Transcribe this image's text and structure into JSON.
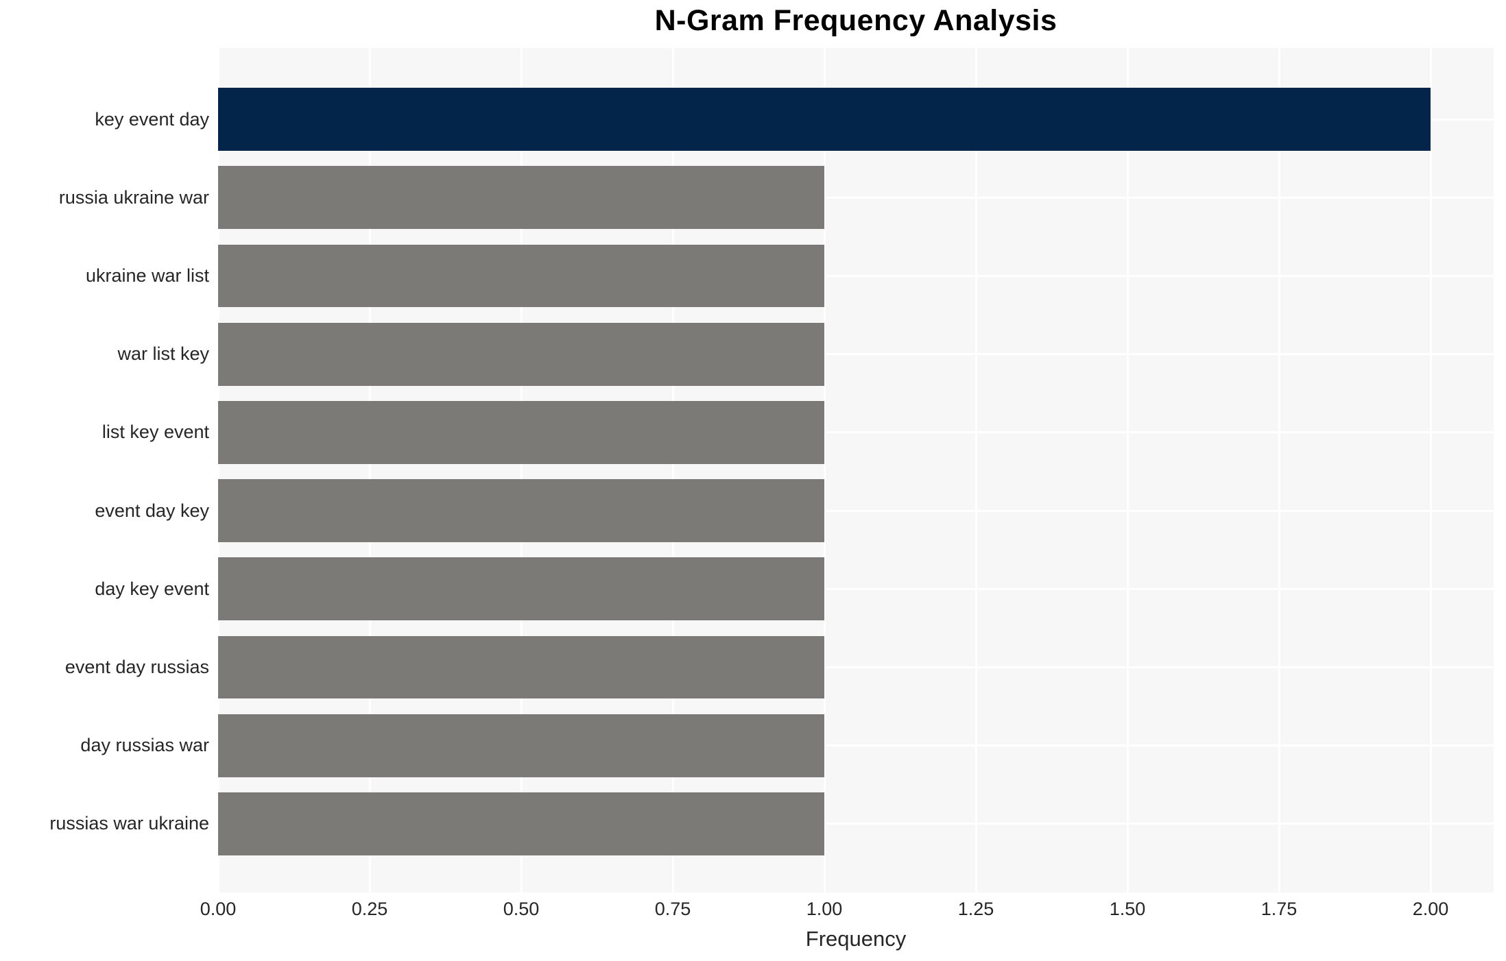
{
  "chart_data": {
    "type": "bar",
    "orientation": "horizontal",
    "title": "N-Gram Frequency Analysis",
    "xlabel": "Frequency",
    "ylabel": "",
    "categories": [
      "key event day",
      "russia ukraine war",
      "ukraine war list",
      "war list key",
      "list key event",
      "event day key",
      "day key event",
      "event day russias",
      "day russias war",
      "russias war ukraine"
    ],
    "values": [
      2,
      1,
      1,
      1,
      1,
      1,
      1,
      1,
      1,
      1
    ],
    "bar_colors": [
      "#032549",
      "#7b7a76",
      "#7b7a76",
      "#7b7a76",
      "#7b7a76",
      "#7b7a76",
      "#7b7a76",
      "#7b7a76",
      "#7b7a76",
      "#7b7a76"
    ],
    "xtick_labels": [
      "0.00",
      "0.25",
      "0.50",
      "0.75",
      "1.00",
      "1.25",
      "1.50",
      "1.75",
      "2.00"
    ],
    "xtick_values": [
      0,
      0.25,
      0.5,
      0.75,
      1.0,
      1.25,
      1.5,
      1.75,
      2.0
    ],
    "xlim": [
      0,
      2.104
    ],
    "grid": true,
    "legend": false,
    "colors": {
      "highlight_bar": "#032549",
      "default_bar": "#7b7a76",
      "plot_background": "#f7f7f7",
      "page_background": "#ffffff",
      "gridline": "#ffffff",
      "title_text": "#000000",
      "label_text": "#262626"
    }
  }
}
